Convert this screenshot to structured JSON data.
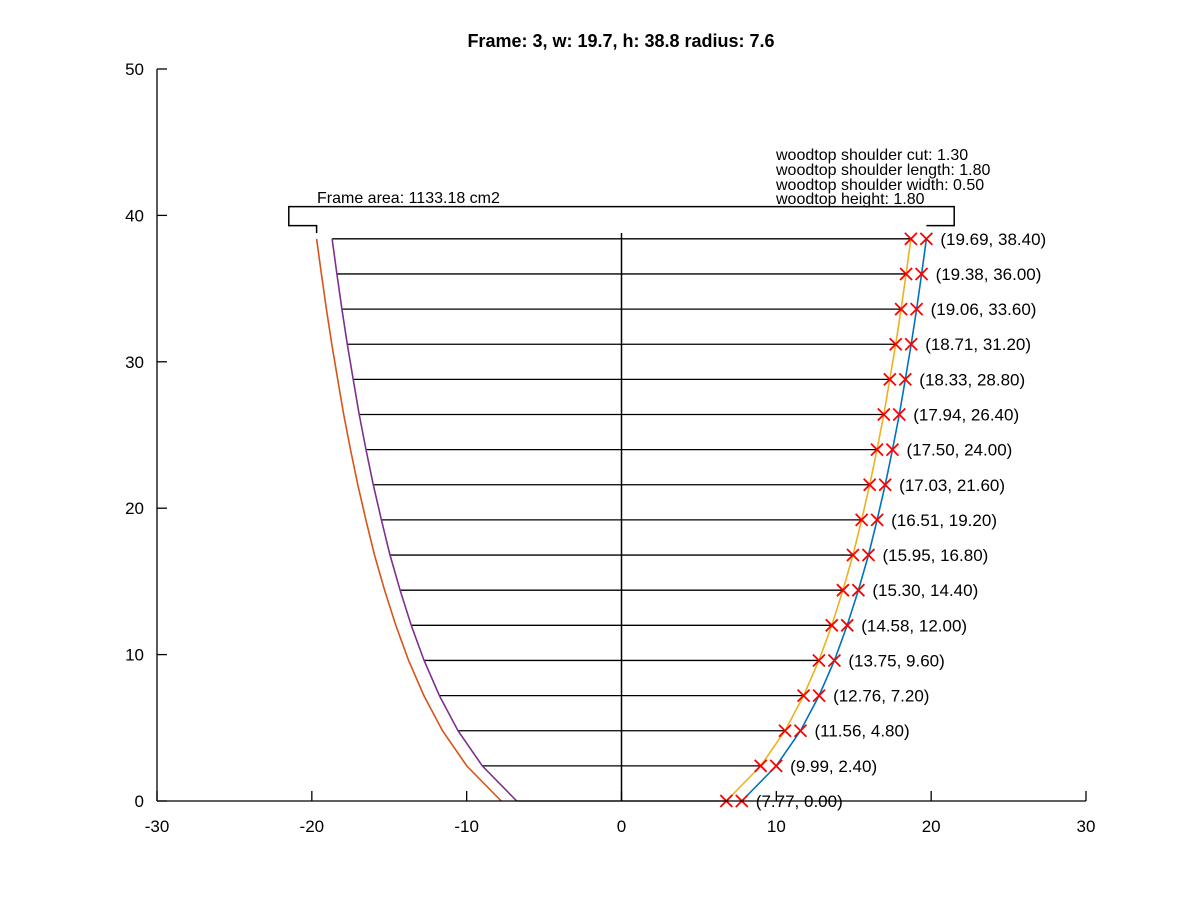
{
  "chart_data": {
    "type": "line",
    "title": "Frame: 3, w: 19.7, h: 38.8 radius: 7.6",
    "xlabel": "",
    "ylabel": "",
    "xlim": [
      -30,
      30
    ],
    "ylim": [
      0,
      50
    ],
    "xticks": [
      "-30",
      "-20",
      "-10",
      "0",
      "10",
      "20",
      "30"
    ],
    "yticks": [
      "0",
      "10",
      "20",
      "30",
      "40",
      "50"
    ],
    "grid": false,
    "box": "off",
    "annotations": {
      "frame_area": "Frame area: 1133.18 cm2",
      "woodtop_lines": [
        "woodtop shoulder cut: 1.30",
        "woodtop shoulder length: 1.80",
        "woodtop shoulder width: 0.50",
        "woodtop height: 1.80"
      ]
    },
    "colors": {
      "blue": "#0072bd",
      "orange": "#d95319",
      "yellow": "#edb120",
      "purple": "#7e2f8e",
      "marker": "#ff0000",
      "black": "#000000"
    },
    "y": [
      0.0,
      2.4,
      4.8,
      7.2,
      9.6,
      12.0,
      14.4,
      16.8,
      19.2,
      21.6,
      24.0,
      26.4,
      28.8,
      31.2,
      33.6,
      36.0,
      38.4
    ],
    "x_outer": [
      7.77,
      9.99,
      11.56,
      12.76,
      13.75,
      14.58,
      15.3,
      15.95,
      16.51,
      17.03,
      17.5,
      17.94,
      18.33,
      18.71,
      19.06,
      19.38,
      19.69
    ],
    "x_inner": [
      6.77,
      8.99,
      10.56,
      11.76,
      12.75,
      13.58,
      14.3,
      14.95,
      15.51,
      16.03,
      16.5,
      16.94,
      17.33,
      17.71,
      18.06,
      18.38,
      18.69
    ],
    "point_labels": [
      "(7.77, 0.00)",
      "(9.99, 2.40)",
      "(11.56, 4.80)",
      "(12.76, 7.20)",
      "(13.75, 9.60)",
      "(14.58, 12.00)",
      "(15.30, 14.40)",
      "(15.95, 16.80)",
      "(16.51, 19.20)",
      "(17.03, 21.60)",
      "(17.50, 24.00)",
      "(17.94, 26.40)",
      "(18.33, 28.80)",
      "(18.71, 31.20)",
      "(19.06, 33.60)",
      "(19.38, 36.00)",
      "(19.69, 38.40)"
    ],
    "center_line": {
      "x": 0,
      "y": [
        0,
        38.8
      ]
    },
    "top_frame_outline": {
      "x": [
        -19.69,
        -19.69,
        -21.49,
        -21.49,
        21.49,
        21.49,
        19.69
      ],
      "y": [
        38.8,
        39.3,
        39.3,
        40.6,
        40.6,
        39.3,
        39.3
      ]
    },
    "series": [
      {
        "color": "blue"
      },
      {
        "color": "yellow"
      },
      {
        "color": "orange"
      },
      {
        "color": "purple"
      }
    ]
  }
}
